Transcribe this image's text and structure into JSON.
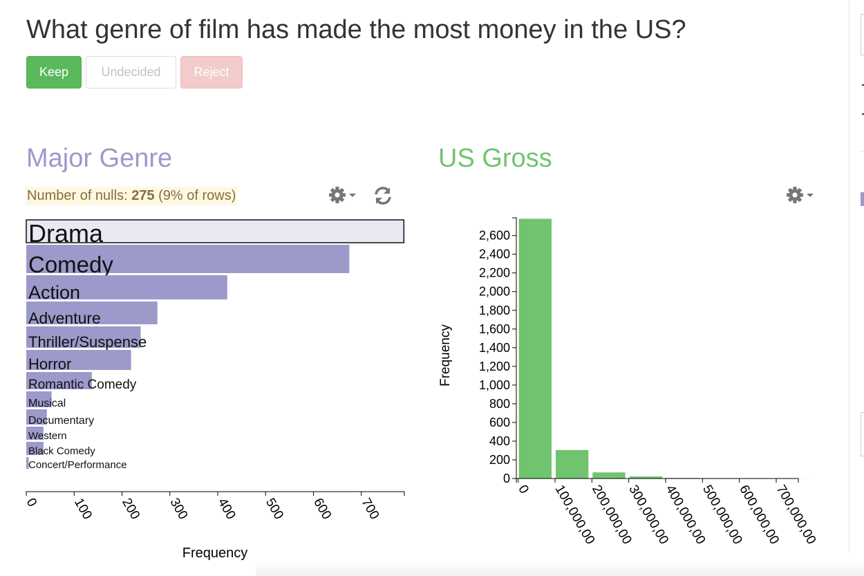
{
  "question": "What genre of film has made the most money in the US?",
  "buttons": {
    "keep": "Keep",
    "undecided": "Undecided",
    "reject": "Reject"
  },
  "colors": {
    "genre_accent": "#9b9aca",
    "gross_accent": "#70c470",
    "keep_green": "#5cb85c",
    "null_text": "#8a6d3b",
    "null_bg": "#fcf8e3"
  },
  "icons": {
    "settings": "gear-icon",
    "refresh": "refresh-icon",
    "dropdown": "caret-down-icon"
  },
  "genre_panel": {
    "title": "Major Genre",
    "nulls_label": "Number of nulls:",
    "nulls_count": "275",
    "nulls_pct": "(9% of rows)"
  },
  "gross_panel": {
    "title": "US Gross"
  },
  "chart_data": [
    {
      "type": "bar",
      "orientation": "horizontal",
      "title": "Major Genre",
      "xlabel": "Frequency",
      "ylabel": "",
      "xlim": [
        0,
        790
      ],
      "x_ticks": [
        "0",
        "100",
        "200",
        "300",
        "400",
        "500",
        "600",
        "700"
      ],
      "categories": [
        "Drama",
        "Comedy",
        "Action",
        "Adventure",
        "Thriller/Suspense",
        "Horror",
        "Romantic Comedy",
        "Musical",
        "Documentary",
        "Western",
        "Black Comedy",
        "Concert/Performance"
      ],
      "values": [
        789,
        675,
        420,
        274,
        239,
        219,
        137,
        53,
        43,
        36,
        36,
        5
      ],
      "selected": "Drama",
      "grid": false
    },
    {
      "type": "bar",
      "title": "US Gross",
      "xlabel": "",
      "ylabel": "Frequency",
      "x_tick_values": [
        0,
        100000000,
        200000000,
        300000000,
        400000000,
        500000000,
        600000000,
        700000000
      ],
      "x_ticks": [
        "0",
        "100,000,00",
        "200,000,00",
        "300,000,00",
        "400,000,00",
        "500,000,00",
        "600,000,00",
        "700,000,00"
      ],
      "y_ticks": [
        "0",
        "200",
        "400",
        "600",
        "800",
        "1,000",
        "1,200",
        "1,400",
        "1,600",
        "1,800",
        "2,000",
        "2,200",
        "2,400",
        "2,600"
      ],
      "xlim": [
        -5000000,
        760000000
      ],
      "ylim": [
        0,
        2790
      ],
      "bins": [
        {
          "x0": 0,
          "x1": 100000000,
          "value": 2780
        },
        {
          "x0": 100000000,
          "x1": 200000000,
          "value": 305
        },
        {
          "x0": 200000000,
          "x1": 300000000,
          "value": 65
        },
        {
          "x0": 300000000,
          "x1": 400000000,
          "value": 22
        },
        {
          "x0": 400000000,
          "x1": 500000000,
          "value": 6
        },
        {
          "x0": 500000000,
          "x1": 600000000,
          "value": 1
        },
        {
          "x0": 600000000,
          "x1": 700000000,
          "value": 0
        },
        {
          "x0": 700000000,
          "x1": 800000000,
          "value": 1
        }
      ],
      "grid": false
    }
  ]
}
